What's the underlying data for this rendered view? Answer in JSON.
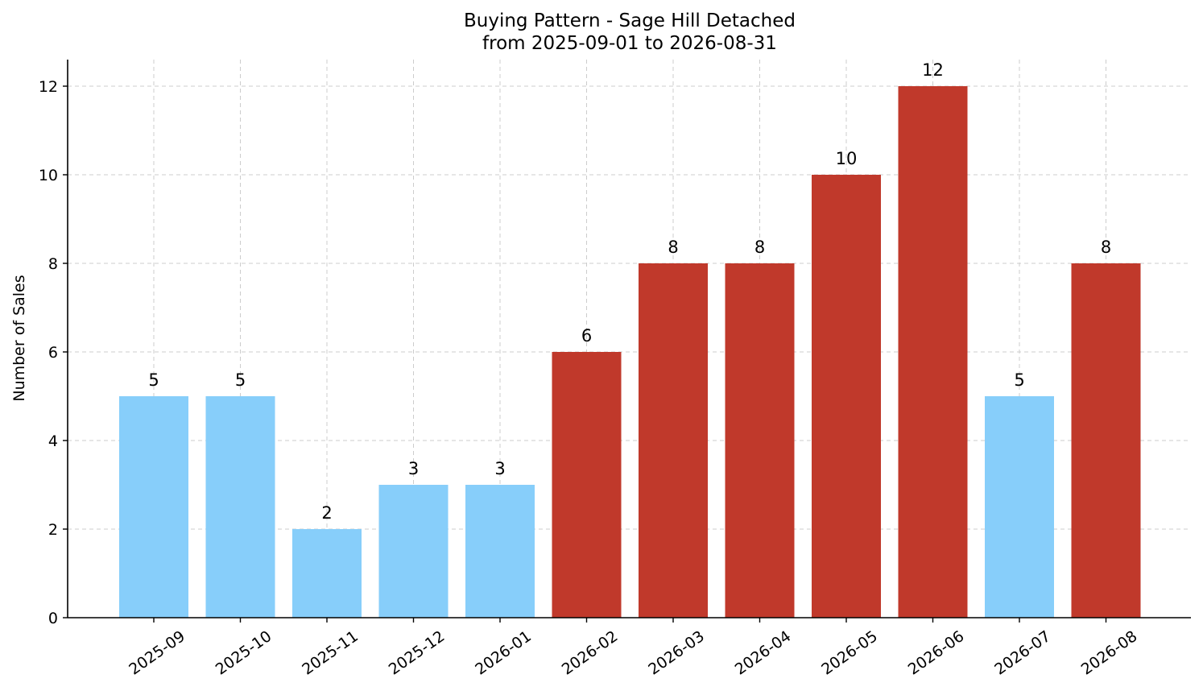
{
  "chart_data": {
    "type": "bar",
    "title": "Buying Pattern - Sage Hill Detached",
    "subtitle": "from 2025-09-01 to 2026-08-31",
    "xlabel": "",
    "ylabel": "Number of Sales",
    "categories": [
      "2025-09",
      "2025-10",
      "2025-11",
      "2025-12",
      "2026-01",
      "2026-02",
      "2026-03",
      "2026-04",
      "2026-05",
      "2026-06",
      "2026-07",
      "2026-08"
    ],
    "values": [
      5,
      5,
      2,
      3,
      3,
      6,
      8,
      8,
      10,
      12,
      5,
      8
    ],
    "bar_colors": [
      "#87CEFA",
      "#87CEFA",
      "#87CEFA",
      "#87CEFA",
      "#87CEFA",
      "#C0392B",
      "#C0392B",
      "#C0392B",
      "#C0392B",
      "#C0392B",
      "#87CEFA",
      "#C0392B"
    ],
    "ylim": [
      0,
      12.6
    ],
    "yticks": [
      0,
      2,
      4,
      6,
      8,
      10,
      12
    ],
    "grid": true,
    "legend": "none"
  }
}
